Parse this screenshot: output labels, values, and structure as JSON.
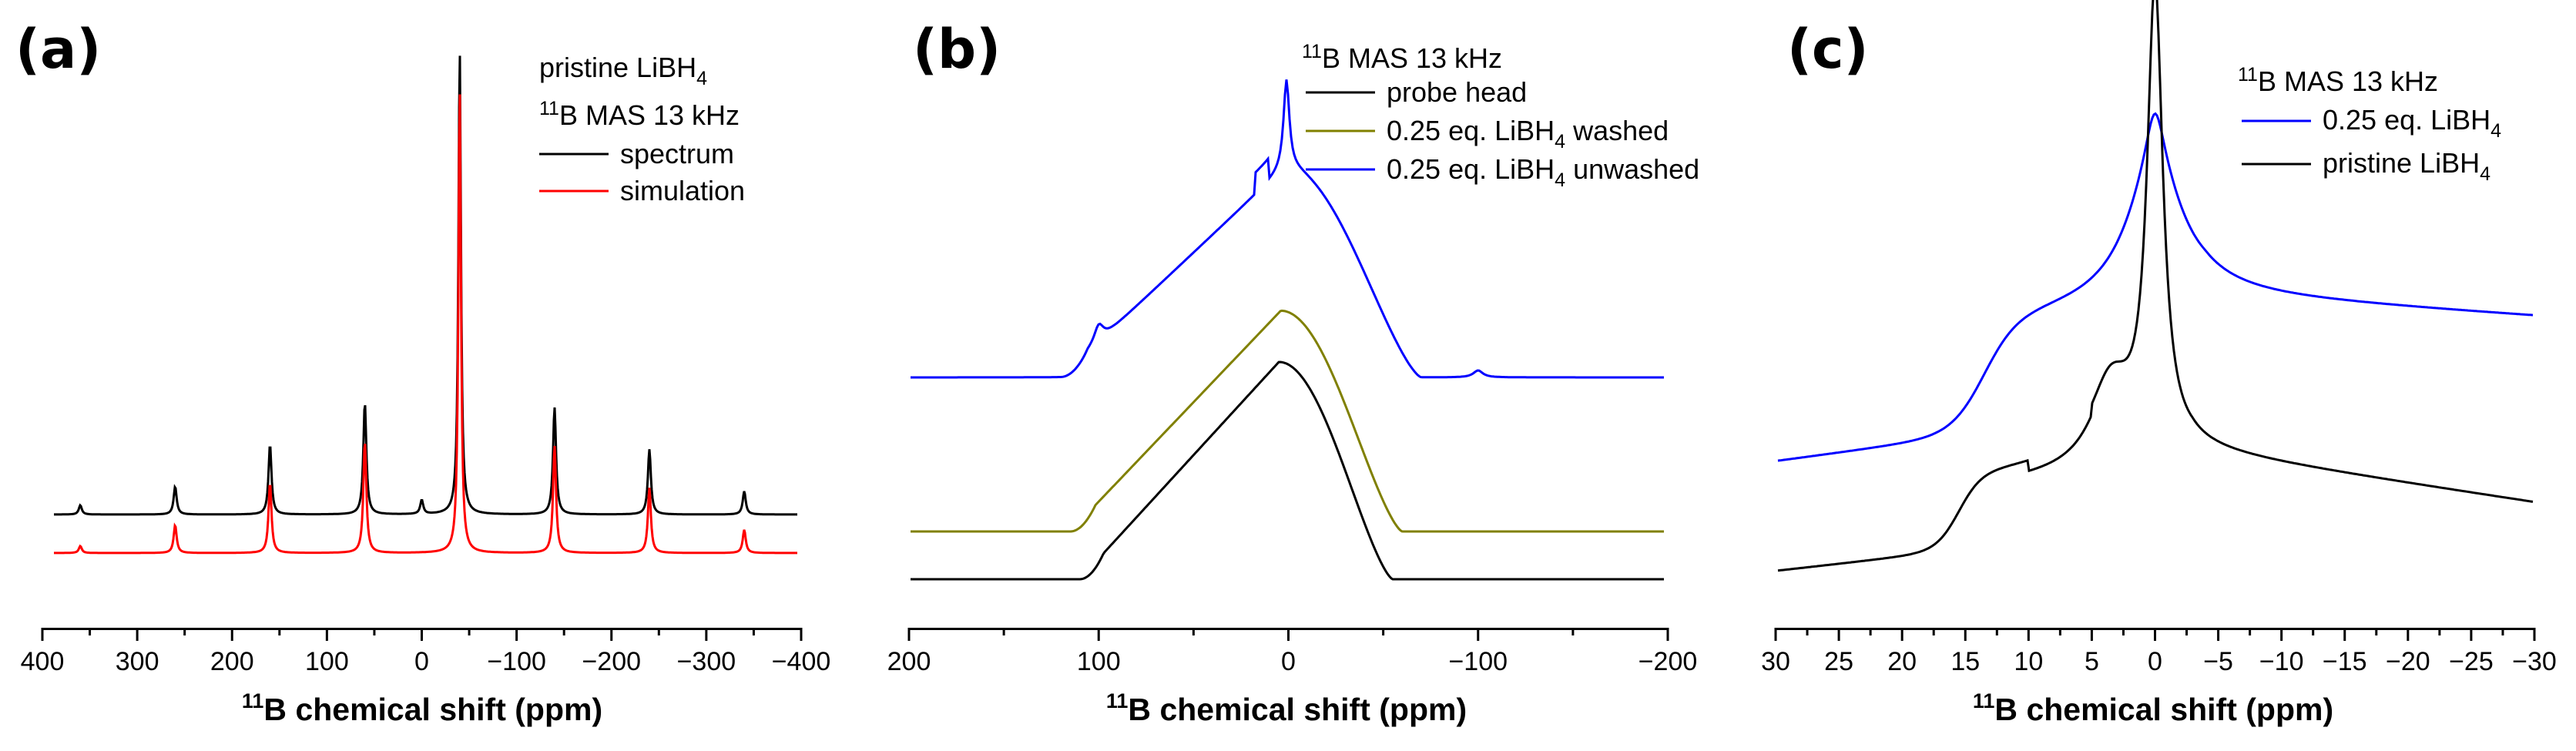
{
  "chart_data": [
    {
      "type": "line",
      "panel_label": "(a)",
      "xlabel": "chemical shift (ppm)",
      "xlabel_isotope": "11",
      "xlabel_element": "B",
      "xlim": [
        400,
        -400
      ],
      "ticks": [
        "400",
        "300",
        "200",
        "100",
        "0",
        "−100",
        "−200",
        "−300",
        "−400"
      ],
      "tick_values": [
        400,
        300,
        200,
        100,
        0,
        -100,
        -200,
        -300,
        -400
      ],
      "legend_title_1": "pristine LiBH",
      "legend_title_1_sub": "4",
      "legend_title_2_iso": "11",
      "legend_title_2": "B MAS 13 kHz",
      "series": [
        {
          "name": "spectrum",
          "color": "#000000",
          "baseline": 0.0,
          "peaks": [
            [
              -40,
              1.0
            ],
            [
              60,
              0.24
            ],
            [
              -140,
              0.23
            ],
            [
              160,
              0.15
            ],
            [
              -240,
              0.14
            ],
            [
              260,
              0.06
            ],
            [
              -340,
              0.05
            ],
            [
              360,
              0.02
            ],
            [
              0,
              0.03
            ]
          ]
        },
        {
          "name": "simulation",
          "color": "#ff0000",
          "baseline": -0.08,
          "peaks": [
            [
              -40,
              1.0
            ],
            [
              60,
              0.24
            ],
            [
              -140,
              0.23
            ],
            [
              160,
              0.15
            ],
            [
              -240,
              0.14
            ],
            [
              260,
              0.06
            ],
            [
              -340,
              0.05
            ],
            [
              360,
              0.015
            ]
          ]
        }
      ]
    },
    {
      "type": "line",
      "panel_label": "(b)",
      "xlabel": "chemical shift (ppm)",
      "xlabel_isotope": "11",
      "xlabel_element": "B",
      "xlim": [
        200,
        -200
      ],
      "ticks": [
        "200",
        "100",
        "0",
        "−100",
        "−200"
      ],
      "tick_values": [
        200,
        100,
        0,
        -100,
        -200
      ],
      "legend_title_iso": "11",
      "legend_title": "B MAS 13 kHz",
      "series": [
        {
          "name": "probe head",
          "color": "#000000",
          "baseline": 0.0,
          "peak_x": 5,
          "peak_height": 0.62,
          "onset": 110,
          "end": -55
        },
        {
          "name": "0.25 eq. LiBH",
          "name_sub": "4",
          "name_suffix": " washed",
          "color": "#808000",
          "baseline": 0.1,
          "peak_x": 4,
          "peak_height": 0.63,
          "onset": 115,
          "end": -60
        },
        {
          "name": "0.25 eq. LiBH",
          "name_sub": "4",
          "name_suffix": " unwashed",
          "color": "#0000ff",
          "baseline": 0.43,
          "peak_x": 2,
          "peak_height": 0.6,
          "onset": 120,
          "end": -70
        }
      ]
    },
    {
      "type": "line",
      "panel_label": "(c)",
      "xlabel": "chemical shift (ppm)",
      "xlabel_isotope": "11",
      "xlabel_element": "B",
      "xlim": [
        30,
        -30
      ],
      "ticks": [
        "30",
        "25",
        "20",
        "15",
        "10",
        "5",
        "0",
        "−5",
        "−10",
        "−15",
        "−20",
        "−25",
        "−30"
      ],
      "tick_values": [
        30,
        25,
        20,
        15,
        10,
        5,
        0,
        -5,
        -10,
        -15,
        -20,
        -25,
        -30
      ],
      "legend_title_iso": "11",
      "legend_title": "B MAS 13 kHz",
      "series": [
        {
          "name": "0.25 eq. LiBH",
          "name_sub": "4",
          "color": "#0000ff",
          "offset": 0.35,
          "peak_x": 0,
          "peak_height": 0.55
        },
        {
          "name": "pristine LiBH",
          "name_sub": "4",
          "color": "#000000",
          "offset": 0.0,
          "peak_x": 0.5,
          "peak_height": 0.95
        }
      ]
    }
  ]
}
